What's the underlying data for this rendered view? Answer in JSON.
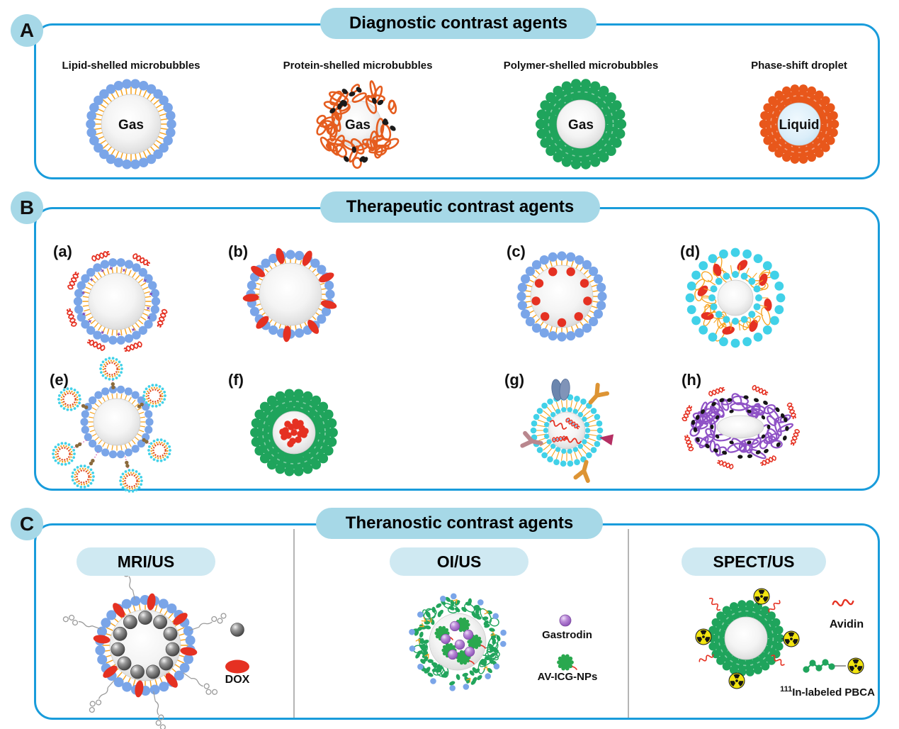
{
  "colors": {
    "panel_border": "#199cdb",
    "header_fill": "#a6d8e7",
    "subheader_fill": "#cfe9f2",
    "lipid_bead_blue": "#7aa5e8",
    "lipid_tail_orange": "#f6a21d",
    "protein_shell_orange": "#e55d1f",
    "polymer_shell_green": "#1fa45c",
    "cyan_bead": "#41d1e8",
    "drug_red": "#e53122",
    "purple_shell": "#8f52c6",
    "radioactive_yellow": "#f2e410"
  },
  "panel_a": {
    "badge": "A",
    "title": "Diagnostic contrast agents",
    "items": [
      {
        "label": "Lipid-shelled microbubbles",
        "core_label": "Gas"
      },
      {
        "label": "Protein-shelled microbubbles",
        "core_label": "Gas"
      },
      {
        "label": "Polymer-shelled microbubbles",
        "core_label": "Gas"
      },
      {
        "label": "Phase-shift droplet",
        "core_label": "Liquid"
      }
    ]
  },
  "panel_b": {
    "badge": "B",
    "title": "Therapeutic contrast agents",
    "items": [
      {
        "label": "(a)"
      },
      {
        "label": "(b)"
      },
      {
        "label": "(c)"
      },
      {
        "label": "(d)"
      },
      {
        "label": "(e)"
      },
      {
        "label": "(f)"
      },
      {
        "label": "(g)"
      },
      {
        "label": "(h)"
      }
    ]
  },
  "panel_c": {
    "badge": "C",
    "title": "Theranostic contrast agents",
    "sections": [
      {
        "title": "MRI/US",
        "legend": [
          {
            "label": "DOX"
          }
        ]
      },
      {
        "title": "OI/US",
        "legend": [
          {
            "label": "Gastrodin"
          },
          {
            "label": "AV-ICG-NPs"
          }
        ]
      },
      {
        "title": "SPECT/US",
        "legend": [
          {
            "label": "Avidin"
          },
          {
            "sup": "111",
            "label": "In-labeled PBCA"
          }
        ]
      }
    ]
  }
}
